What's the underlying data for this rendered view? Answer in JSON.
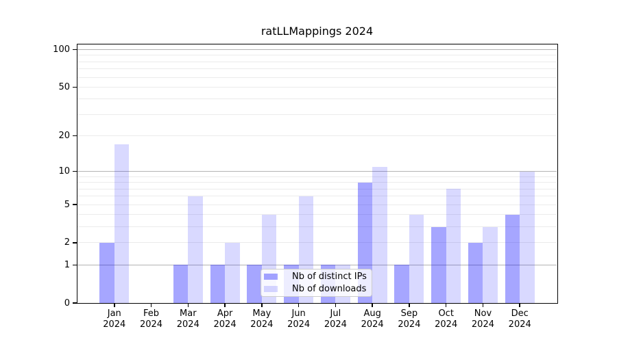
{
  "chart_data": {
    "type": "bar",
    "title": "ratLLMappings 2024",
    "categories": [
      "Jan 2024",
      "Feb 2024",
      "Mar 2024",
      "Apr 2024",
      "May 2024",
      "Jun 2024",
      "Jul 2024",
      "Aug 2024",
      "Sep 2024",
      "Oct 2024",
      "Nov 2024",
      "Dec 2024"
    ],
    "series": [
      {
        "name": "Nb of distinct IPs",
        "color": "#0000FF59",
        "values": [
          2,
          0,
          1,
          1,
          1,
          1,
          1,
          8,
          1,
          3,
          2,
          4
        ]
      },
      {
        "name": "Nb of downloads",
        "color": "#0000FF26",
        "values": [
          17,
          0,
          6,
          2,
          4,
          6,
          1,
          11,
          4,
          7,
          3,
          10
        ]
      }
    ],
    "y_axis": {
      "scale": "log1p",
      "tick_labels": [
        100,
        50,
        20,
        10,
        5,
        2,
        1,
        0
      ],
      "major_gridlines": [
        1,
        10,
        100
      ],
      "range": [
        0,
        110
      ]
    },
    "legend": {
      "position": "lower center inside axes"
    },
    "grid": "on",
    "layout_colors": {
      "minor_grid": "#ebebeb",
      "major_grid": "#b3b3b3",
      "spine": "#000000",
      "text": "#000000",
      "background": "#ffffff"
    }
  }
}
